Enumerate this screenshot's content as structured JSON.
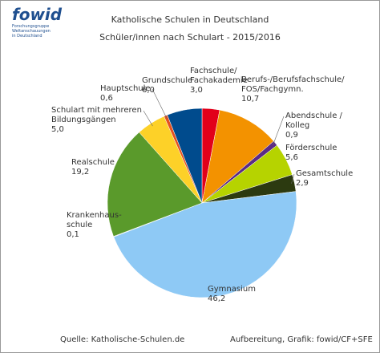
{
  "logo": {
    "name": "fowid",
    "subtitle": "Forschungsgruppe\nWeltanschauungen\nin Deutschland"
  },
  "chart_data": {
    "type": "pie",
    "title": "Katholische Schulen in Deutschland",
    "subtitle": "Schüler/innen nach Schulart - 2015/2016",
    "categories": [
      "Fachschule/\nFachakademie",
      "Berufs-/Berufsfachschule/\nFOS/Fachgymn.",
      "Abendschule /\nKolleg",
      "Förderschule",
      "Gesamtschule",
      "Gymnasium",
      "Krankenhaus-\nschule",
      "Realschule",
      "Schulart mit mehreren\nBildungsgängen",
      "Hauptschule",
      "Grundschule"
    ],
    "values": [
      3.0,
      10.7,
      0.9,
      5.6,
      2.9,
      46.2,
      0.1,
      19.2,
      5.0,
      0.6,
      6.0
    ],
    "value_labels": [
      "3,0",
      "10,7",
      "0,9",
      "5,6",
      "2,9",
      "46,2",
      "0,1",
      "19,2",
      "5,0",
      "0,6",
      "6,0"
    ],
    "colors": [
      "#e2001a",
      "#f39200",
      "#5b2a86",
      "#b6d300",
      "#2c3a10",
      "#8ec9f5",
      "#c9def2",
      "#5a9a2b",
      "#fdd128",
      "#e5501e",
      "#004b8d"
    ]
  },
  "footer": {
    "source": "Quelle: Katholische-Schulen.de",
    "credit": "Aufbereitung, Grafik: fowid/CF+SFE"
  }
}
